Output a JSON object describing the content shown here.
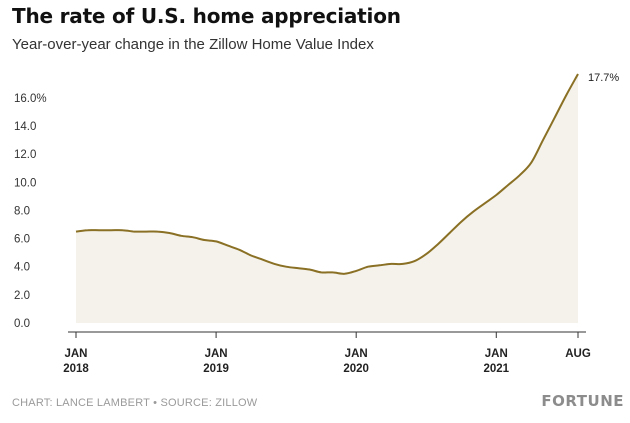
{
  "header": {
    "title": "The rate of U.S. home appreciation",
    "subtitle": "Year-over-year change in the Zillow Home Value Index"
  },
  "footer": {
    "credit": "CHART: LANCE LAMBERT • SOURCE: ZILLOW",
    "brand": "FORTUNE"
  },
  "colors": {
    "line": "#8a7024",
    "area": "#f4f2ea",
    "axis": "#333333"
  },
  "chart_data": {
    "type": "area",
    "title": "The rate of U.S. home appreciation",
    "subtitle": "Year-over-year change in the Zillow Home Value Index",
    "x_tick_labels": [
      {
        "x": "2018-01",
        "line1": "JAN",
        "line2": "2018"
      },
      {
        "x": "2019-01",
        "line1": "JAN",
        "line2": "2019"
      },
      {
        "x": "2020-01",
        "line1": "JAN",
        "line2": "2020"
      },
      {
        "x": "2021-01",
        "line1": "JAN",
        "line2": "2021"
      },
      {
        "x": "2021-08",
        "line1": "AUG",
        "line2": ""
      }
    ],
    "y_tick_labels": [
      "0.0",
      "2.0",
      "4.0",
      "6.0",
      "8.0",
      "10.0",
      "12.0",
      "14.0",
      "16.0%"
    ],
    "y_ticks": [
      0,
      2,
      4,
      6,
      8,
      10,
      12,
      14,
      16
    ],
    "ylim": [
      0,
      17.7
    ],
    "grid": false,
    "end_label": "17.7%",
    "series": [
      {
        "x": [
          "2018-01",
          "2018-02",
          "2018-03",
          "2018-04",
          "2018-05",
          "2018-06",
          "2018-07",
          "2018-08",
          "2018-09",
          "2018-10",
          "2018-11",
          "2018-12",
          "2019-01",
          "2019-02",
          "2019-03",
          "2019-04",
          "2019-05",
          "2019-06",
          "2019-07",
          "2019-08",
          "2019-09",
          "2019-10",
          "2019-11",
          "2019-12",
          "2020-01",
          "2020-02",
          "2020-03",
          "2020-04",
          "2020-05",
          "2020-06",
          "2020-07",
          "2020-08",
          "2020-09",
          "2020-10",
          "2020-11",
          "2020-12",
          "2021-01",
          "2021-02",
          "2021-03",
          "2021-04",
          "2021-05",
          "2021-06",
          "2021-07",
          "2021-08"
        ],
        "values": [
          6.5,
          6.6,
          6.6,
          6.6,
          6.6,
          6.5,
          6.5,
          6.5,
          6.4,
          6.2,
          6.1,
          5.9,
          5.8,
          5.5,
          5.2,
          4.8,
          4.5,
          4.2,
          4.0,
          3.9,
          3.8,
          3.6,
          3.6,
          3.5,
          3.7,
          4.0,
          4.1,
          4.2,
          4.2,
          4.4,
          4.9,
          5.6,
          6.4,
          7.2,
          7.9,
          8.5,
          9.1,
          9.8,
          10.5,
          11.4,
          13.0,
          14.6,
          16.2,
          17.7
        ]
      }
    ]
  }
}
